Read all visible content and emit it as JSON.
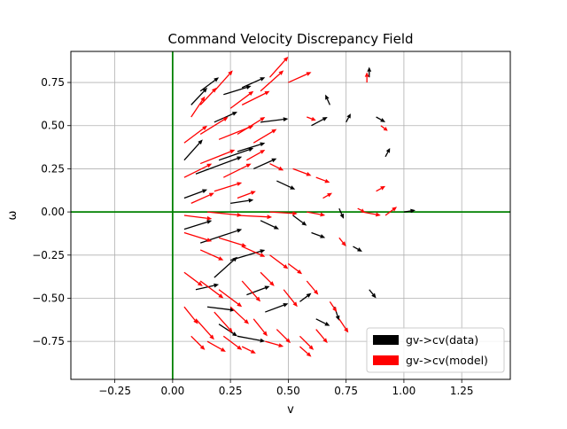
{
  "chart_data": {
    "type": "quiver",
    "title": "Command Velocity Discrepancy Field",
    "xlabel": "v",
    "ylabel": "ω",
    "xlim": [
      -0.44,
      1.46
    ],
    "ylim": [
      -0.97,
      0.93
    ],
    "xticks": [
      -0.25,
      0.0,
      0.25,
      0.5,
      0.75,
      1.0,
      1.25
    ],
    "xtick_labels": [
      "−0.25",
      "0.00",
      "0.25",
      "0.50",
      "0.75",
      "1.00",
      "1.25"
    ],
    "yticks": [
      -0.75,
      -0.5,
      -0.25,
      0.0,
      0.25,
      0.5,
      0.75
    ],
    "ytick_labels": [
      "−0.75",
      "−0.50",
      "−0.25",
      "0.00",
      "0.25",
      "0.50",
      "0.75"
    ],
    "grid": true,
    "reference_lines": {
      "x": 0.0,
      "y": 0.0,
      "color": "#008000"
    },
    "legend": {
      "placement": "lower-right",
      "entries": [
        {
          "label": "gv->cv(data)",
          "color": "#000000"
        },
        {
          "label": "gv->cv(model)",
          "color": "#ff0000"
        }
      ]
    },
    "series": [
      {
        "name": "gv->cv(data)",
        "color": "#000000",
        "arrows": [
          [
            0.08,
            0.62,
            0.07,
            0.1
          ],
          [
            0.12,
            0.7,
            0.08,
            0.08
          ],
          [
            0.18,
            0.52,
            0.1,
            0.06
          ],
          [
            0.22,
            0.68,
            0.12,
            0.05
          ],
          [
            0.3,
            0.72,
            0.1,
            0.06
          ],
          [
            0.38,
            0.52,
            0.12,
            0.02
          ],
          [
            0.05,
            0.3,
            0.08,
            0.12
          ],
          [
            0.1,
            0.22,
            0.2,
            0.1
          ],
          [
            0.2,
            0.3,
            0.15,
            0.07
          ],
          [
            0.28,
            0.35,
            0.12,
            0.05
          ],
          [
            0.35,
            0.25,
            0.1,
            0.06
          ],
          [
            0.45,
            0.18,
            0.08,
            -0.05
          ],
          [
            0.6,
            0.5,
            0.07,
            0.05
          ],
          [
            0.68,
            0.62,
            -0.02,
            0.06
          ],
          [
            0.75,
            0.52,
            0.02,
            0.05
          ],
          [
            0.92,
            0.32,
            0.02,
            0.05
          ],
          [
            0.05,
            0.08,
            0.1,
            0.05
          ],
          [
            0.25,
            0.05,
            0.1,
            0.02
          ],
          [
            0.52,
            -0.02,
            0.06,
            -0.06
          ],
          [
            0.72,
            0.02,
            0.02,
            -0.06
          ],
          [
            1.0,
            0.0,
            0.05,
            0.01
          ],
          [
            0.05,
            -0.1,
            0.12,
            0.05
          ],
          [
            0.12,
            -0.18,
            0.18,
            0.08
          ],
          [
            0.18,
            -0.38,
            0.1,
            0.12
          ],
          [
            0.25,
            -0.28,
            0.15,
            0.06
          ],
          [
            0.32,
            -0.48,
            0.1,
            0.05
          ],
          [
            0.4,
            -0.58,
            0.1,
            0.05
          ],
          [
            0.1,
            -0.45,
            0.1,
            0.03
          ],
          [
            0.15,
            -0.55,
            0.12,
            -0.02
          ],
          [
            0.2,
            -0.65,
            0.08,
            -0.07
          ],
          [
            0.28,
            -0.72,
            0.12,
            -0.03
          ],
          [
            0.55,
            -0.52,
            0.05,
            0.05
          ],
          [
            0.62,
            -0.62,
            0.06,
            -0.04
          ],
          [
            0.7,
            -0.55,
            0.02,
            -0.08
          ],
          [
            0.85,
            -0.45,
            0.03,
            -0.05
          ],
          [
            0.78,
            -0.2,
            0.04,
            -0.03
          ],
          [
            0.6,
            -0.12,
            0.06,
            -0.03
          ],
          [
            0.38,
            -0.05,
            0.08,
            -0.05
          ],
          [
            0.85,
            0.78,
            0.0,
            0.06
          ],
          [
            0.88,
            0.55,
            0.04,
            -0.03
          ]
        ]
      },
      {
        "name": "gv->cv(model)",
        "color": "#ff0000",
        "arrows": [
          [
            0.08,
            0.55,
            0.06,
            0.12
          ],
          [
            0.12,
            0.62,
            0.07,
            0.1
          ],
          [
            0.18,
            0.7,
            0.08,
            0.12
          ],
          [
            0.25,
            0.6,
            0.1,
            0.1
          ],
          [
            0.3,
            0.62,
            0.12,
            0.08
          ],
          [
            0.38,
            0.7,
            0.1,
            0.12
          ],
          [
            0.42,
            0.78,
            0.08,
            0.12
          ],
          [
            0.5,
            0.75,
            0.1,
            0.06
          ],
          [
            0.05,
            0.4,
            0.1,
            0.1
          ],
          [
            0.12,
            0.45,
            0.12,
            0.1
          ],
          [
            0.2,
            0.42,
            0.15,
            0.08
          ],
          [
            0.28,
            0.45,
            0.12,
            0.1
          ],
          [
            0.35,
            0.4,
            0.1,
            0.08
          ],
          [
            0.05,
            0.2,
            0.12,
            0.08
          ],
          [
            0.12,
            0.28,
            0.15,
            0.08
          ],
          [
            0.22,
            0.2,
            0.12,
            0.08
          ],
          [
            0.32,
            0.3,
            0.08,
            0.06
          ],
          [
            0.42,
            0.28,
            0.06,
            -0.04
          ],
          [
            0.52,
            0.25,
            0.08,
            -0.04
          ],
          [
            0.62,
            0.2,
            0.06,
            -0.03
          ],
          [
            0.08,
            0.05,
            0.1,
            0.06
          ],
          [
            0.18,
            0.12,
            0.12,
            0.05
          ],
          [
            0.28,
            0.08,
            0.08,
            0.04
          ],
          [
            0.05,
            -0.02,
            0.12,
            -0.02
          ],
          [
            0.15,
            0.0,
            0.15,
            -0.02
          ],
          [
            0.28,
            -0.02,
            0.15,
            -0.01
          ],
          [
            0.42,
            0.0,
            0.12,
            -0.01
          ],
          [
            0.58,
            0.0,
            0.08,
            -0.02
          ],
          [
            0.82,
            0.0,
            0.08,
            -0.02
          ],
          [
            0.92,
            -0.02,
            0.05,
            0.05
          ],
          [
            0.05,
            -0.12,
            0.12,
            -0.05
          ],
          [
            0.12,
            -0.22,
            0.1,
            -0.06
          ],
          [
            0.2,
            -0.15,
            0.12,
            -0.05
          ],
          [
            0.3,
            -0.2,
            0.1,
            -0.06
          ],
          [
            0.42,
            -0.25,
            0.08,
            -0.08
          ],
          [
            0.5,
            -0.3,
            0.06,
            -0.06
          ],
          [
            0.05,
            -0.35,
            0.08,
            -0.08
          ],
          [
            0.12,
            -0.4,
            0.1,
            -0.1
          ],
          [
            0.2,
            -0.45,
            0.1,
            -0.1
          ],
          [
            0.3,
            -0.4,
            0.08,
            -0.12
          ],
          [
            0.38,
            -0.35,
            0.06,
            -0.08
          ],
          [
            0.48,
            -0.45,
            0.06,
            -0.1
          ],
          [
            0.58,
            -0.4,
            0.05,
            -0.08
          ],
          [
            0.05,
            -0.55,
            0.06,
            -0.1
          ],
          [
            0.1,
            -0.62,
            0.08,
            -0.12
          ],
          [
            0.18,
            -0.58,
            0.08,
            -0.12
          ],
          [
            0.25,
            -0.55,
            0.08,
            -0.1
          ],
          [
            0.35,
            -0.62,
            0.06,
            -0.1
          ],
          [
            0.45,
            -0.68,
            0.06,
            -0.08
          ],
          [
            0.55,
            -0.72,
            0.06,
            -0.08
          ],
          [
            0.62,
            -0.68,
            0.05,
            -0.08
          ],
          [
            0.72,
            -0.62,
            0.04,
            -0.08
          ],
          [
            0.68,
            -0.52,
            0.03,
            -0.06
          ],
          [
            0.08,
            -0.72,
            0.06,
            -0.08
          ],
          [
            0.15,
            -0.75,
            0.08,
            -0.06
          ],
          [
            0.22,
            -0.72,
            0.08,
            -0.08
          ],
          [
            0.3,
            -0.78,
            0.06,
            -0.04
          ],
          [
            0.4,
            -0.75,
            0.08,
            -0.03
          ],
          [
            0.55,
            -0.78,
            0.05,
            -0.06
          ],
          [
            0.72,
            -0.15,
            0.03,
            -0.05
          ],
          [
            0.65,
            0.08,
            0.04,
            0.03
          ],
          [
            0.8,
            0.02,
            0.03,
            -0.02
          ],
          [
            0.84,
            0.75,
            0.0,
            0.06
          ],
          [
            0.58,
            0.55,
            0.04,
            -0.02
          ],
          [
            0.9,
            0.5,
            0.03,
            -0.03
          ],
          [
            0.88,
            0.12,
            0.04,
            0.03
          ]
        ]
      }
    ]
  }
}
